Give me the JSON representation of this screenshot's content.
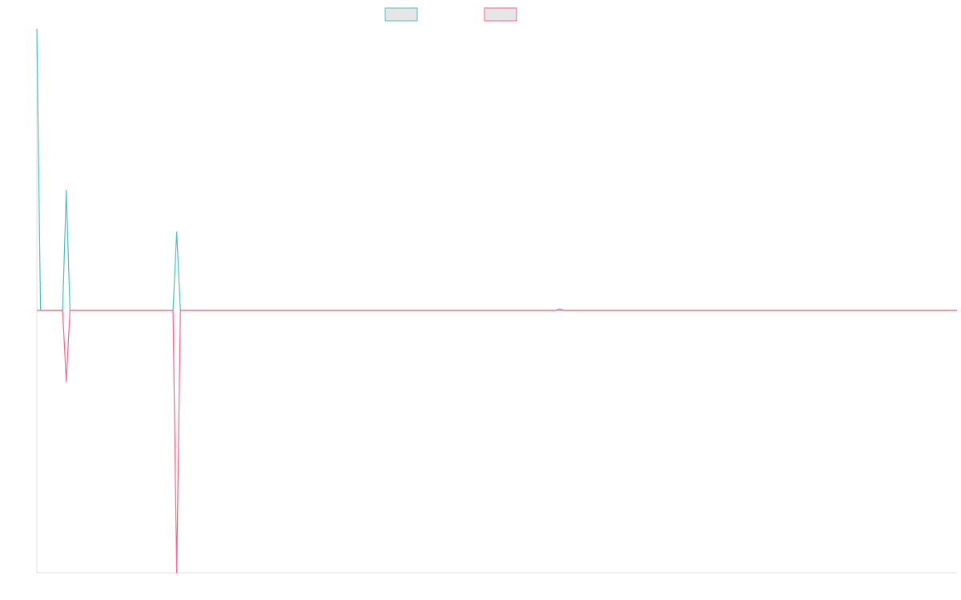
{
  "chart_data": {
    "type": "line",
    "xlim": [
      0,
      250
    ],
    "ylim": [
      -328,
      352
    ],
    "series": [
      {
        "color": "#4bc0c0",
        "x": [
          0,
          1,
          7,
          8,
          9,
          37,
          38,
          39,
          250
        ],
        "values": [
          352,
          0,
          0,
          150,
          0,
          0,
          98,
          0,
          0
        ]
      },
      {
        "color": "#ff6384",
        "x": [
          0,
          7,
          8,
          9,
          37,
          38,
          39,
          141,
          142,
          143,
          250
        ],
        "values": [
          0,
          0,
          -89,
          0,
          0,
          -328,
          0,
          0,
          2,
          0,
          0
        ]
      }
    ]
  }
}
